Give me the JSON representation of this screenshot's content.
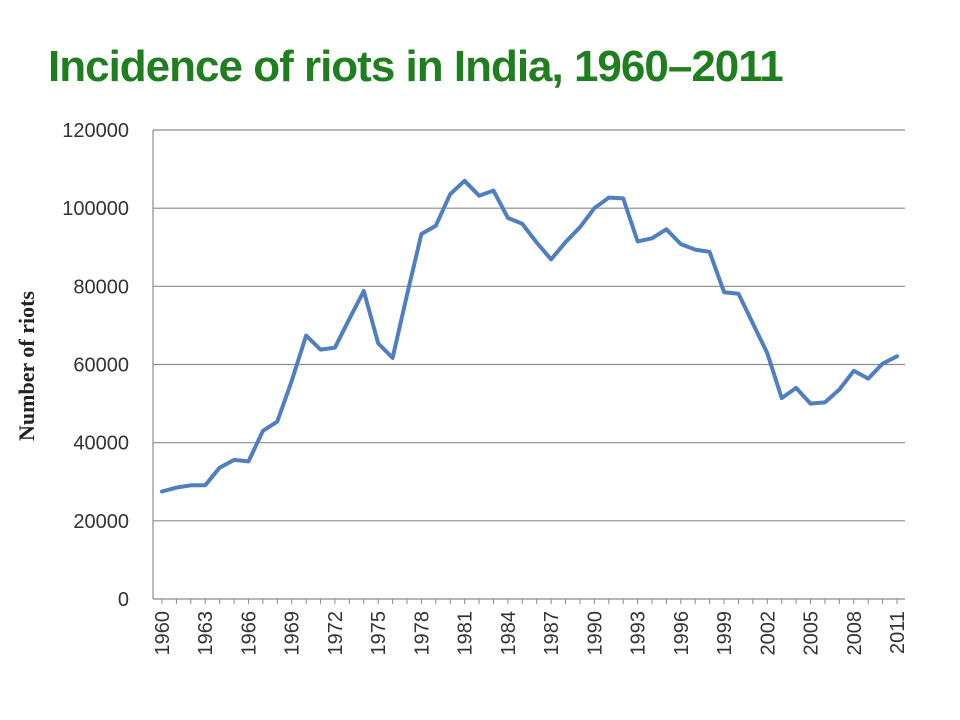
{
  "chart_data": {
    "type": "line",
    "title": "Incidence of riots in India, 1960–2011",
    "xlabel": "",
    "ylabel": "Number of riots",
    "ylim": [
      0,
      120000
    ],
    "yticks": [
      "0",
      "20000",
      "40000",
      "60000",
      "80000",
      "100000",
      "120000"
    ],
    "x_tick_labels": [
      "1960",
      "1963",
      "1966",
      "1969",
      "1972",
      "1975",
      "1978",
      "1981",
      "1984",
      "1987",
      "1990",
      "1993",
      "1996",
      "1999",
      "2002",
      "2005",
      "2008",
      "2011"
    ],
    "grid": true,
    "line_color": "#4f7fbf",
    "title_color": "#1f7f1f",
    "x": [
      1960,
      1961,
      1962,
      1963,
      1964,
      1965,
      1966,
      1967,
      1968,
      1969,
      1970,
      1971,
      1972,
      1973,
      1974,
      1975,
      1976,
      1977,
      1978,
      1979,
      1980,
      1981,
      1982,
      1983,
      1984,
      1985,
      1986,
      1987,
      1988,
      1989,
      1990,
      1991,
      1992,
      1993,
      1994,
      1995,
      1996,
      1997,
      1998,
      1999,
      2000,
      2001,
      2002,
      2003,
      2004,
      2005,
      2006,
      2007,
      2008,
      2009,
      2010,
      2011
    ],
    "series": [
      {
        "values": [
          27500,
          28500,
          29100,
          29100,
          33600,
          35600,
          35200,
          43000,
          45400,
          55800,
          67400,
          63800,
          64300,
          71700,
          78800,
          65400,
          61700,
          77800,
          93400,
          95500,
          103600,
          107000,
          103200,
          104500,
          97500,
          96000,
          91200,
          86900,
          91300,
          95100,
          100000,
          102700,
          102500,
          91500,
          92300,
          94600,
          90800,
          89400,
          88800,
          78500,
          78100,
          70500,
          62900,
          51400,
          54000,
          50000,
          50300,
          53600,
          58400,
          56400,
          60200,
          62100
        ]
      }
    ]
  }
}
